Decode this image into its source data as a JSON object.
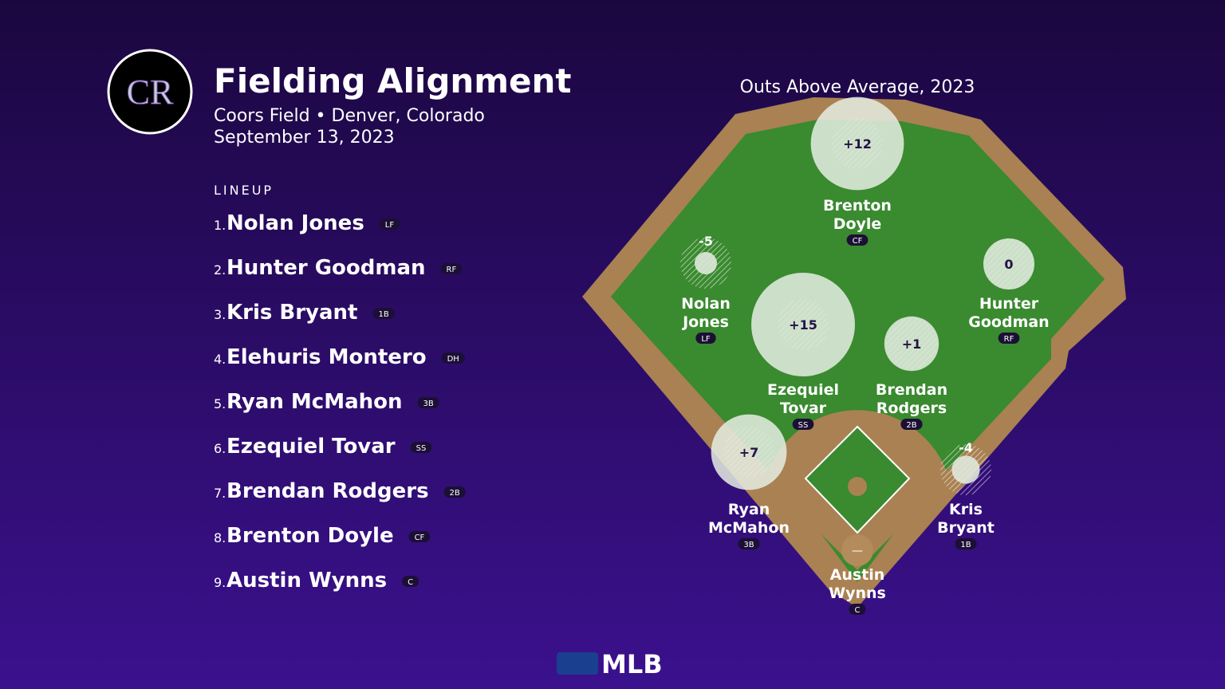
{
  "header": {
    "logo": "CR",
    "title": "Fielding Alignment",
    "venue": "Coors Field • Denver, Colorado",
    "date": "September 13, 2023"
  },
  "lineup": {
    "heading": "LINEUP",
    "items": [
      {
        "order": "1.",
        "name": "Nolan Jones",
        "position": "LF"
      },
      {
        "order": "2.",
        "name": "Hunter Goodman",
        "position": "RF"
      },
      {
        "order": "3.",
        "name": "Kris Bryant",
        "position": "1B"
      },
      {
        "order": "4.",
        "name": "Elehuris Montero",
        "position": "DH"
      },
      {
        "order": "5.",
        "name": "Ryan McMahon",
        "position": "3B"
      },
      {
        "order": "6.",
        "name": "Ezequiel Tovar",
        "position": "SS"
      },
      {
        "order": "7.",
        "name": "Brendan Rodgers",
        "position": "2B"
      },
      {
        "order": "8.",
        "name": "Brenton Doyle",
        "position": "CF"
      },
      {
        "order": "9.",
        "name": "Austin Wynns",
        "position": "C"
      }
    ]
  },
  "field": {
    "title": "Outs Above Average, 2023",
    "players": [
      {
        "name_lines": [
          "Nolan",
          "Jones"
        ],
        "position": "LF",
        "oaa": -5
      },
      {
        "name_lines": [
          "Hunter",
          "Goodman"
        ],
        "position": "RF",
        "oaa": 0
      },
      {
        "name_lines": [
          "Kris",
          "Bryant"
        ],
        "position": "1B",
        "oaa": -4
      },
      {
        "name_lines": [
          "Ryan",
          "McMahon"
        ],
        "position": "3B",
        "oaa": 7,
        "oaa_label": "+7"
      },
      {
        "name_lines": [
          "Ezequiel",
          "Tovar"
        ],
        "position": "SS",
        "oaa": 15,
        "oaa_label": "+15"
      },
      {
        "name_lines": [
          "Brendan",
          "Rodgers"
        ],
        "position": "2B",
        "oaa": 1,
        "oaa_label": "+1"
      },
      {
        "name_lines": [
          "Brenton",
          "Doyle"
        ],
        "position": "CF",
        "oaa": 12,
        "oaa_label": "+12"
      },
      {
        "name_lines": [
          "Austin",
          "Wynns"
        ],
        "position": "C",
        "oaa": null,
        "oaa_label": "—"
      }
    ]
  },
  "footer": {
    "logo": "MLB"
  }
}
